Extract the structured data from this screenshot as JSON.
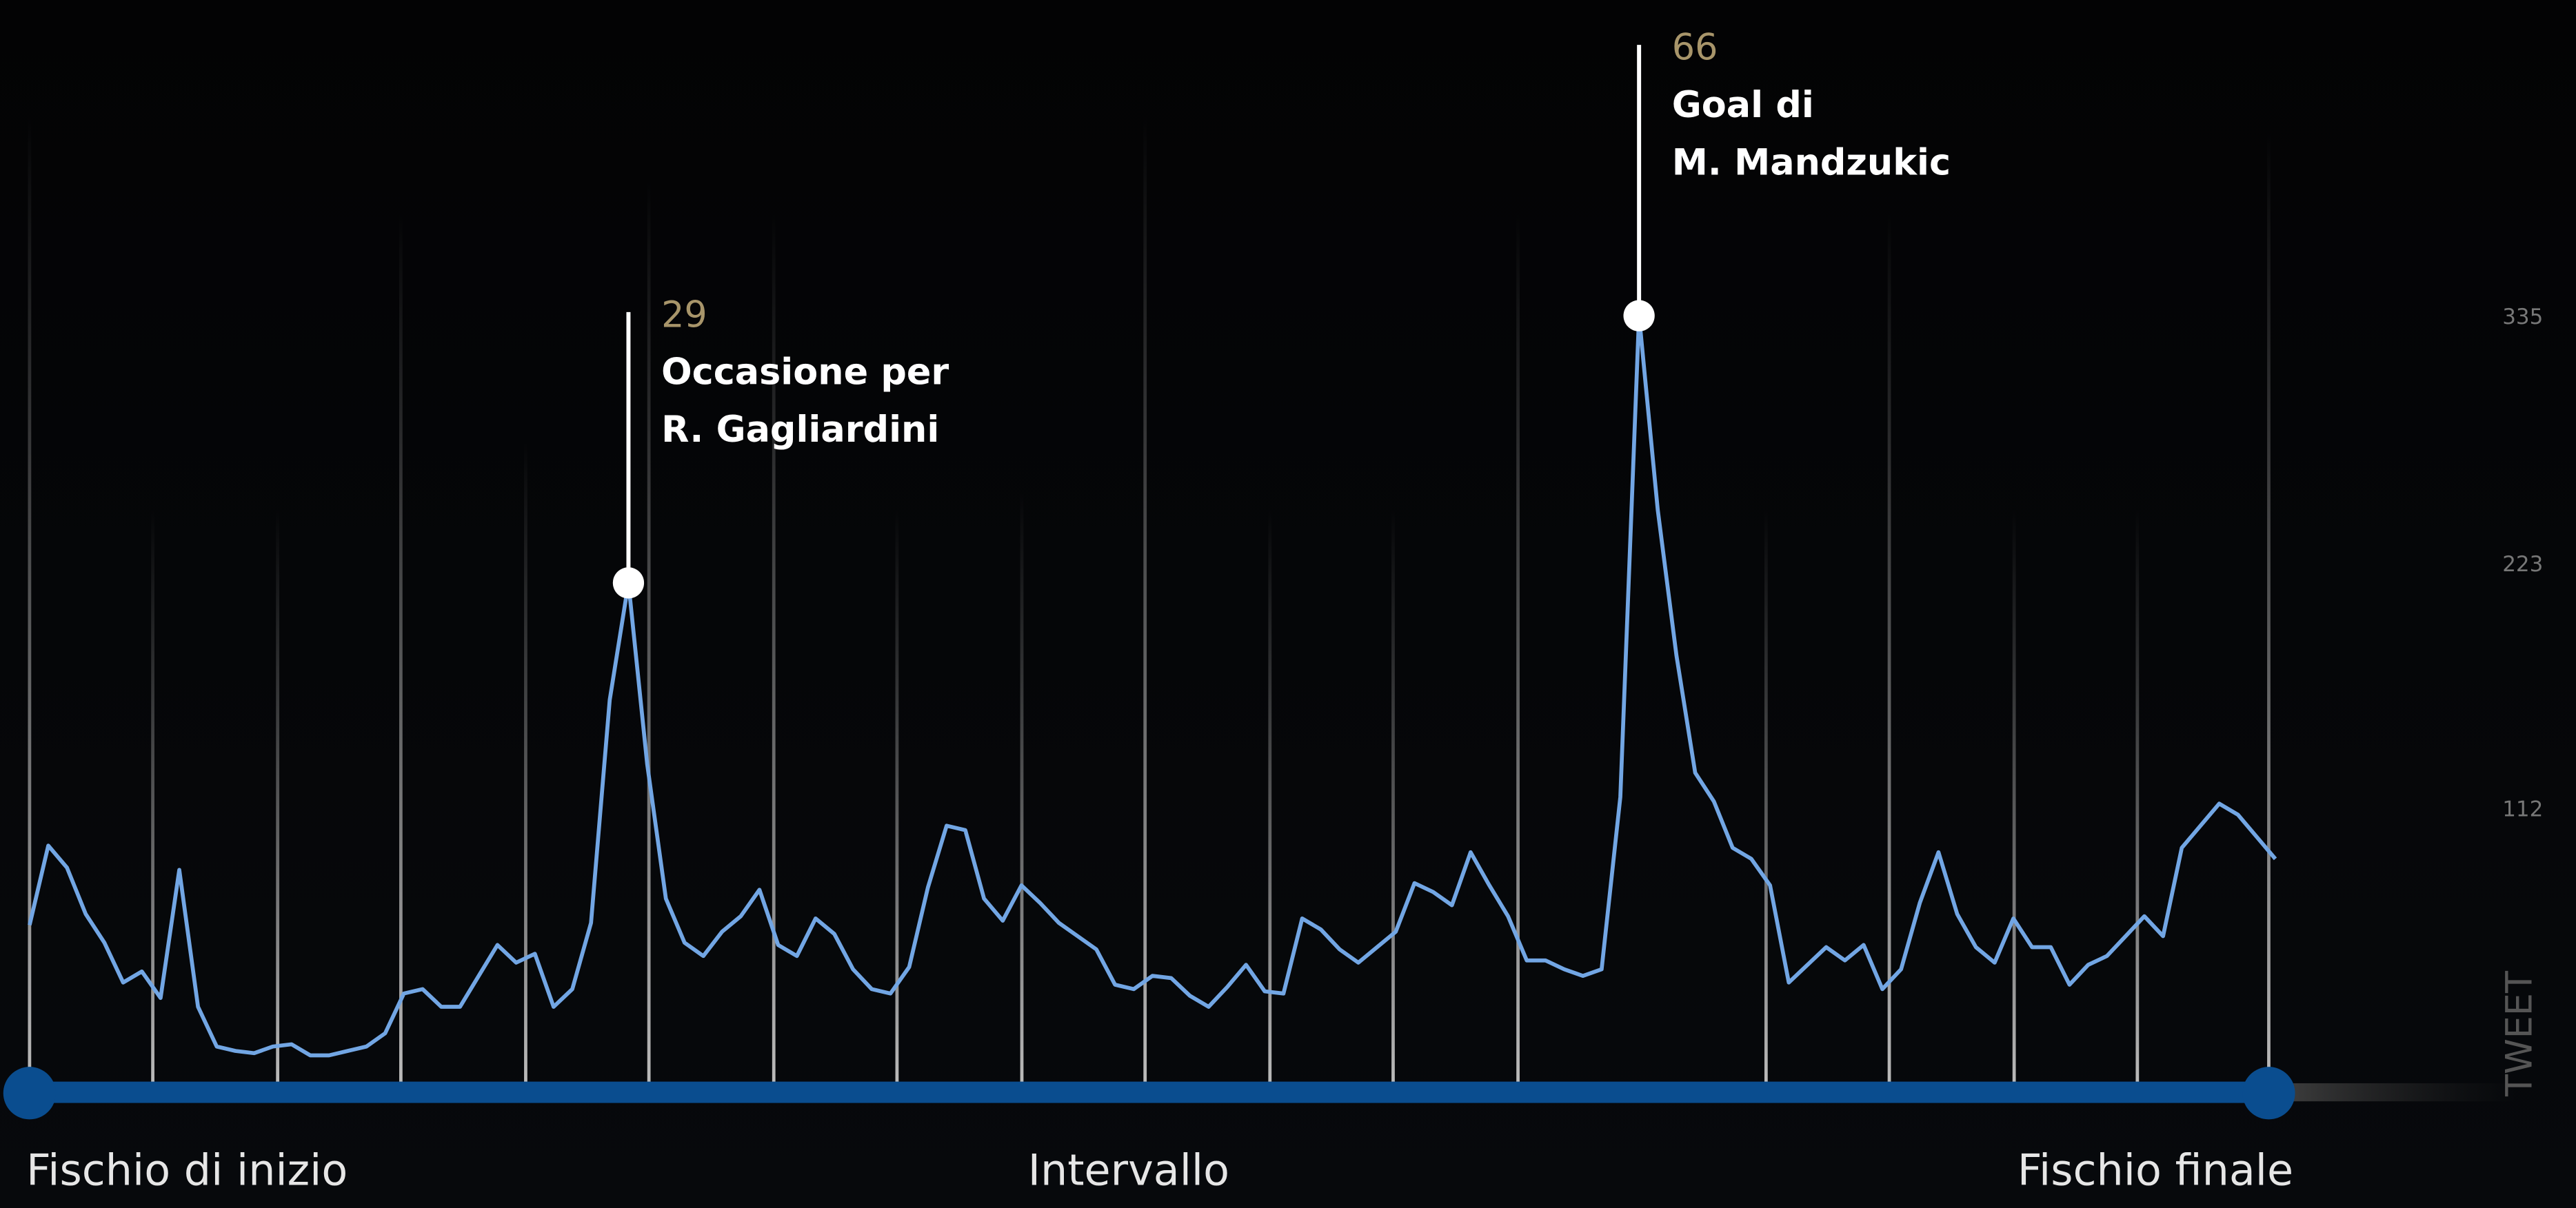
{
  "chart_data": {
    "type": "line",
    "y_label": "TWEET",
    "x_labels": [
      "Fischio di inizio",
      "Intervallo",
      "Fischio finale"
    ],
    "color": "#72a6e4",
    "values": [
      59,
      95,
      85,
      64,
      51,
      33,
      38,
      26,
      84,
      22,
      4,
      2,
      1,
      4,
      5,
      0,
      0,
      2,
      4,
      10,
      28,
      30,
      22,
      22,
      36,
      50,
      42,
      46,
      22,
      30,
      60,
      161,
      214,
      132,
      71,
      51,
      45,
      56,
      63,
      75,
      50,
      45,
      62,
      55,
      39,
      30,
      28,
      40,
      76,
      104,
      102,
      71,
      61,
      77,
      69,
      60,
      54,
      48,
      32,
      30,
      36,
      35,
      27,
      22,
      31,
      41,
      29,
      28,
      62,
      57,
      48,
      42,
      49,
      56,
      78,
      74,
      68,
      92,
      77,
      63,
      43,
      43,
      39,
      36,
      39,
      117,
      335,
      247,
      181,
      128,
      115,
      94,
      89,
      77,
      33,
      41,
      49,
      43,
      50,
      30,
      39,
      69,
      92,
      64,
      49,
      42,
      62,
      49,
      49,
      32,
      41,
      45,
      54,
      63,
      54,
      94,
      104,
      114,
      109,
      99,
      89
    ],
    "ylim": [
      0,
      478
    ],
    "yticks": [
      112,
      223,
      335
    ],
    "annotations": [
      {
        "index": 32,
        "minute": 29,
        "lines": [
          "Occasione per",
          "R. Gagliardini"
        ]
      },
      {
        "index": 86,
        "minute": 66,
        "lines": [
          "Goal di",
          "M. Mandzukic"
        ]
      }
    ]
  }
}
